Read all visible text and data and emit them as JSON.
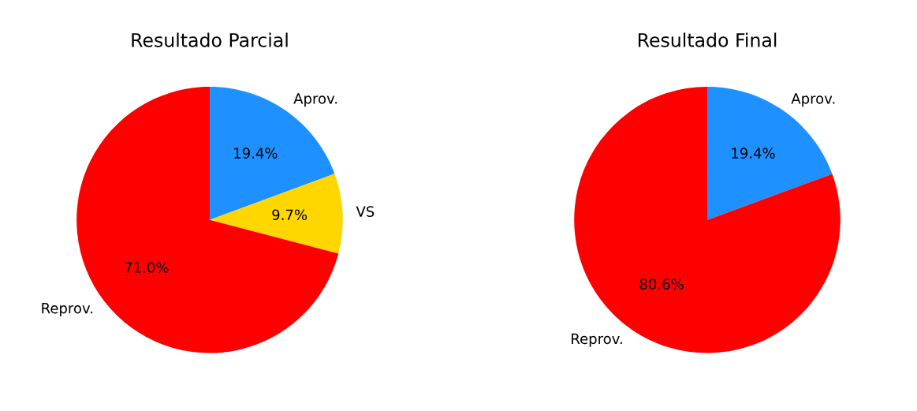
{
  "chart_data": [
    {
      "type": "pie",
      "title": "Resultado Parcial",
      "categories": [
        "Aprov.",
        "VS",
        "Reprov."
      ],
      "values": [
        19.4,
        9.7,
        71.0
      ],
      "colors": [
        "#1e90ff",
        "#ffd700",
        "#ff0000"
      ],
      "value_labels": [
        "19.4%",
        "9.7%",
        "71.0%"
      ]
    },
    {
      "type": "pie",
      "title": "Resultado Final",
      "categories": [
        "Aprov.",
        "Reprov."
      ],
      "values": [
        19.4,
        80.6
      ],
      "colors": [
        "#1e90ff",
        "#ff0000"
      ],
      "value_labels": [
        "19.4%",
        "80.6%"
      ]
    }
  ]
}
